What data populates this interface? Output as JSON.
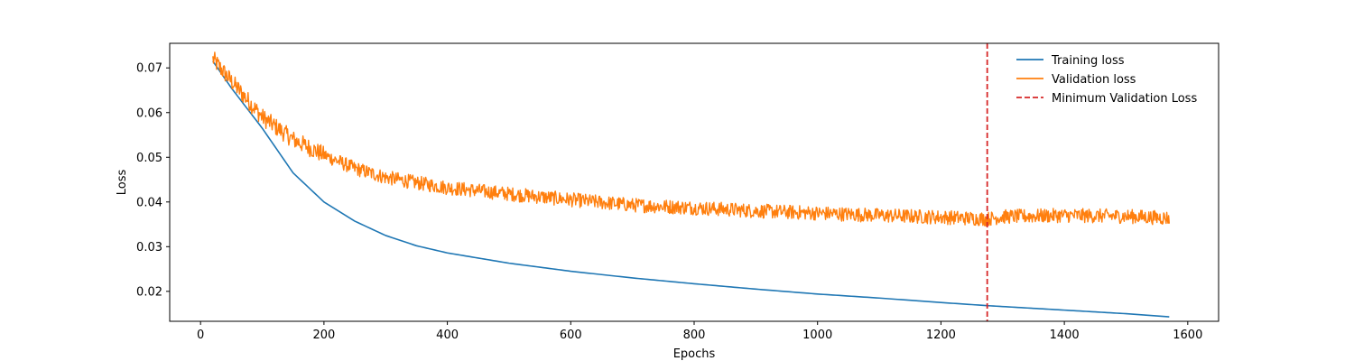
{
  "chart_data": {
    "type": "line",
    "title": "",
    "xlabel": "Epochs",
    "ylabel": "Loss",
    "xlim": [
      -50,
      1650
    ],
    "ylim": [
      0.0133,
      0.0755
    ],
    "xticks": [
      0,
      200,
      400,
      600,
      800,
      1000,
      1200,
      1400,
      1600
    ],
    "yticks": [
      0.02,
      0.03,
      0.04,
      0.05,
      0.06,
      0.07
    ],
    "grid": false,
    "legend": {
      "placement": "top-right",
      "frame": false
    },
    "series": [
      {
        "name": "Training loss",
        "color": "#1f77b4",
        "style": "solid",
        "x": [
          20,
          50,
          100,
          150,
          200,
          250,
          300,
          350,
          400,
          500,
          600,
          700,
          800,
          900,
          1000,
          1100,
          1200,
          1275,
          1300,
          1400,
          1500,
          1570
        ],
        "y": [
          0.0715,
          0.0655,
          0.0565,
          0.0465,
          0.04,
          0.0357,
          0.0325,
          0.0302,
          0.0286,
          0.0263,
          0.0245,
          0.023,
          0.0217,
          0.0205,
          0.0194,
          0.0185,
          0.0175,
          0.0168,
          0.0166,
          0.0158,
          0.015,
          0.0143
        ]
      },
      {
        "name": "Validation loss",
        "color": "#ff7f0e",
        "style": "solid",
        "x": [
          20,
          50,
          100,
          150,
          200,
          250,
          300,
          350,
          400,
          500,
          600,
          700,
          800,
          900,
          1000,
          1100,
          1200,
          1275,
          1300,
          1400,
          1500,
          1570
        ],
        "y": [
          0.072,
          0.067,
          0.059,
          0.054,
          0.0505,
          0.0475,
          0.0455,
          0.0443,
          0.0432,
          0.0418,
          0.0405,
          0.0393,
          0.0387,
          0.038,
          0.0375,
          0.037,
          0.0366,
          0.0362,
          0.0367,
          0.037,
          0.0368,
          0.0364
        ],
        "noise": 0.0016
      },
      {
        "name": "Minimum Validation Loss",
        "color": "#d62728",
        "style": "dashed",
        "type": "vline",
        "x": 1275
      }
    ]
  }
}
